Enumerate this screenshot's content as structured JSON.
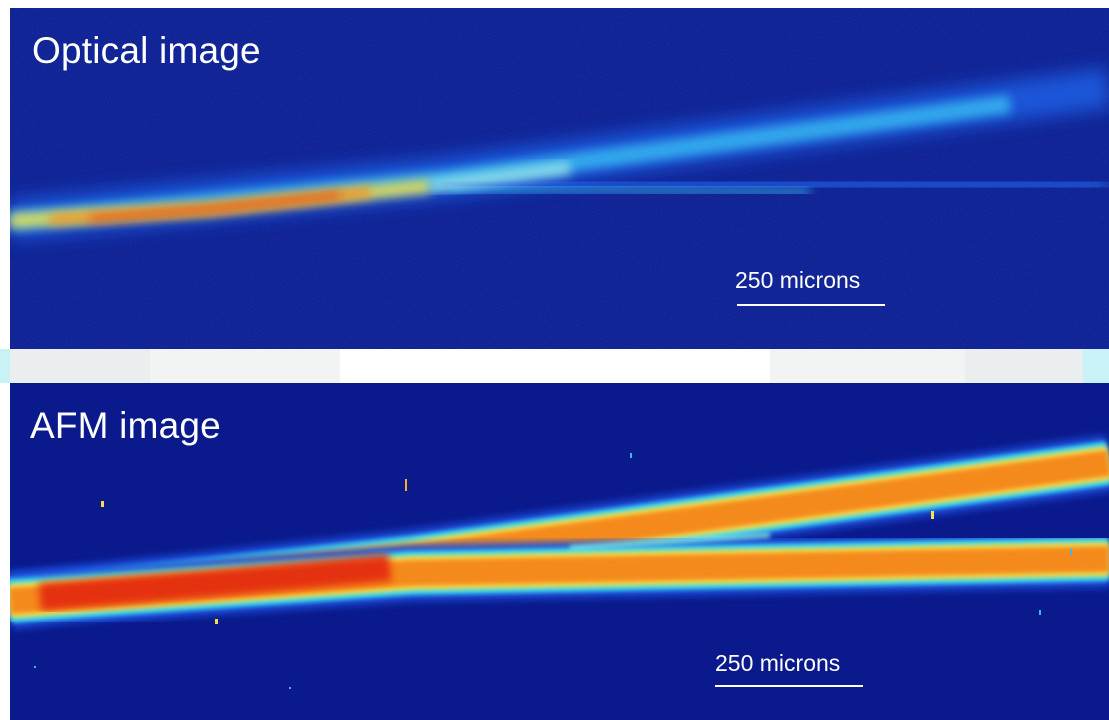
{
  "panels": [
    {
      "label": "Optical image",
      "scale_label": "250 microns"
    },
    {
      "label": "AFM image",
      "scale_label": "250 microns"
    }
  ],
  "colors": {
    "background": "#0a1a8c",
    "jet_cyan": "#38d8f0",
    "jet_yellow": "#f5e04a",
    "jet_orange": "#f58a1a",
    "jet_red": "#e22010"
  }
}
